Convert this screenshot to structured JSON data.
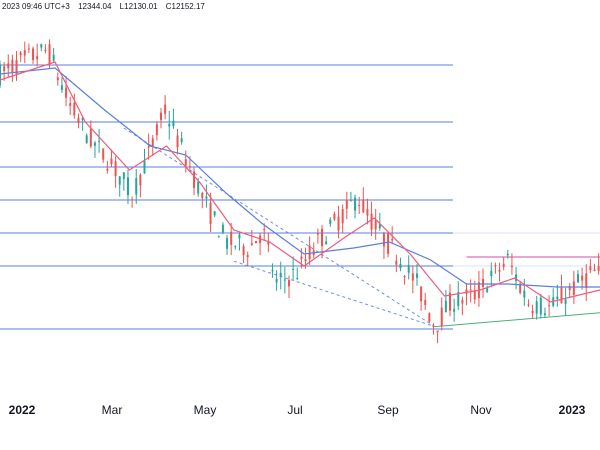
{
  "header": {
    "timestamp": "2023 09:46 UTC+3",
    "low": "L12130.01",
    "close": "C12152.17",
    "high_partial": "12344.04"
  },
  "colors": {
    "up": "#26a69a",
    "down": "#ef5350",
    "ma_fast": "#ef5b7a",
    "ma_slow": "#5b7fe0",
    "level_line": "#5b7fe0",
    "trendline": "#6e8fd8",
    "support": "#4caf7d",
    "resistance": "#d14da0",
    "axis_text": "#131722"
  },
  "chart_data": {
    "type": "candlestick",
    "title": "",
    "xlabel": "",
    "ylabel": "",
    "x_tick_labels": [
      "2022",
      "Mar",
      "May",
      "Jul",
      "Sep",
      "Nov",
      "2023"
    ],
    "x_range": [
      "2021-12-01",
      "2023-02-10"
    ],
    "y_range": [
      10200,
      16400
    ],
    "horizontal_levels": [
      15650,
      14700,
      13950,
      13400,
      12850,
      12300,
      11250
    ],
    "trendlines": [
      {
        "type": "resistance",
        "from": [
          "2022-05-20",
          12380
        ],
        "to": [
          "2022-10-13",
          11290
        ]
      },
      {
        "type": "support",
        "from": [
          "2022-10-13",
          11290
        ],
        "to": [
          "2023-02-10",
          11520
        ]
      },
      {
        "type": "resistance-flat",
        "from": [
          "2022-11-05",
          12450
        ],
        "to": [
          "2023-02-10",
          12450
        ]
      },
      {
        "type": "dashed",
        "from": [
          "2022-03-01",
          14600
        ],
        "to": [
          "2022-10-13",
          11290
        ]
      }
    ],
    "price_path": [
      [
        "2021-12-01",
        15500
      ],
      [
        "2021-12-20",
        15750
      ],
      [
        "2022-01-05",
        15900
      ],
      [
        "2022-01-20",
        15000
      ],
      [
        "2022-02-05",
        14400
      ],
      [
        "2022-02-20",
        14000
      ],
      [
        "2022-03-07",
        13500
      ],
      [
        "2022-03-20",
        14200
      ],
      [
        "2022-03-31",
        14900
      ],
      [
        "2022-04-15",
        14100
      ],
      [
        "2022-04-30",
        13300
      ],
      [
        "2022-05-15",
        12700
      ],
      [
        "2022-05-31",
        12600
      ],
      [
        "2022-06-10",
        12900
      ],
      [
        "2022-06-20",
        12000
      ],
      [
        "2022-07-05",
        12200
      ],
      [
        "2022-07-20",
        12700
      ],
      [
        "2022-08-05",
        13100
      ],
      [
        "2022-08-18",
        13450
      ],
      [
        "2022-09-01",
        12900
      ],
      [
        "2022-09-15",
        12500
      ],
      [
        "2022-09-30",
        12000
      ],
      [
        "2022-10-13",
        11300
      ],
      [
        "2022-10-25",
        11700
      ],
      [
        "2022-11-10",
        11800
      ],
      [
        "2022-11-25",
        12150
      ],
      [
        "2022-12-05",
        12400
      ],
      [
        "2022-12-20",
        11700
      ],
      [
        "2023-01-05",
        11600
      ],
      [
        "2023-01-20",
        11900
      ],
      [
        "2023-02-05",
        12200
      ],
      [
        "2023-02-10",
        12152
      ]
    ],
    "ma_fast": [
      [
        "2021-12-01",
        15400
      ],
      [
        "2022-01-10",
        15700
      ],
      [
        "2022-02-01",
        14700
      ],
      [
        "2022-03-05",
        13900
      ],
      [
        "2022-04-01",
        14300
      ],
      [
        "2022-04-25",
        13700
      ],
      [
        "2022-05-20",
        12900
      ],
      [
        "2022-06-15",
        12700
      ],
      [
        "2022-07-10",
        12300
      ],
      [
        "2022-08-10",
        12800
      ],
      [
        "2022-08-30",
        13100
      ],
      [
        "2022-09-25",
        12500
      ],
      [
        "2022-10-20",
        11800
      ],
      [
        "2022-11-15",
        11900
      ],
      [
        "2022-12-10",
        12100
      ],
      [
        "2023-01-05",
        11700
      ],
      [
        "2023-02-10",
        11900
      ]
    ],
    "ma_slow": [
      [
        "2021-12-01",
        15500
      ],
      [
        "2022-01-10",
        15600
      ],
      [
        "2022-02-15",
        14900
      ],
      [
        "2022-03-20",
        14300
      ],
      [
        "2022-04-15",
        14150
      ],
      [
        "2022-05-15",
        13500
      ],
      [
        "2022-06-10",
        13000
      ],
      [
        "2022-07-10",
        12500
      ],
      [
        "2022-08-15",
        12600
      ],
      [
        "2022-09-10",
        12700
      ],
      [
        "2022-10-10",
        12400
      ],
      [
        "2022-11-05",
        12000
      ],
      [
        "2022-12-05",
        12000
      ],
      [
        "2023-01-10",
        11950
      ],
      [
        "2023-02-10",
        11950
      ]
    ]
  }
}
